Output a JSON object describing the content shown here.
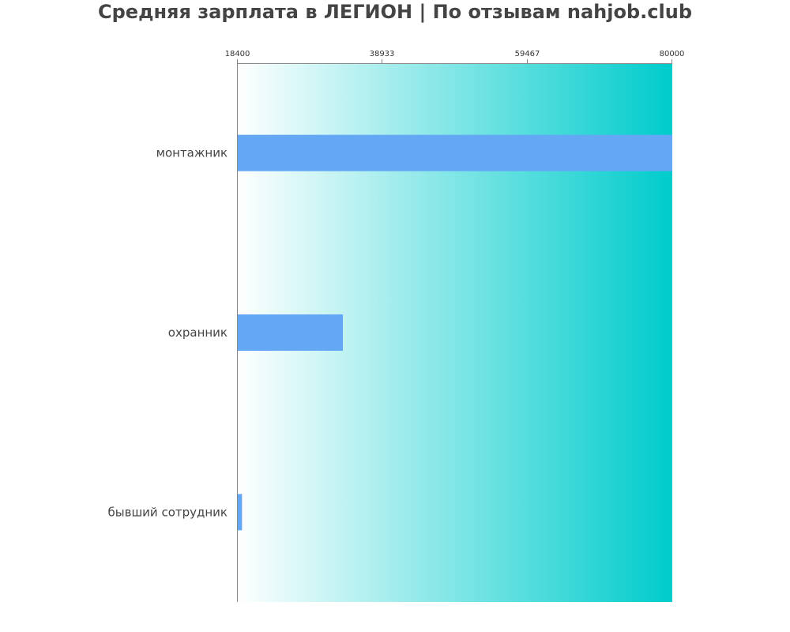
{
  "chart_data": {
    "type": "bar",
    "orientation": "horizontal",
    "title": "Средняя зарплата в ЛЕГИОН | По отзывам nahjob.club",
    "xlabel": "",
    "ylabel": "",
    "categories": [
      "монтажник",
      "охранник",
      "бывший сотрудник"
    ],
    "values": [
      80000,
      33300,
      19000
    ],
    "xlim": [
      18400,
      80000
    ],
    "x_tick_labels": [
      "18400",
      "38933",
      "59467",
      "80000"
    ],
    "x_ticks_position": "top",
    "grid": false,
    "bar_color": "#64a8f5",
    "background_gradient": [
      "#ffffff",
      "#00cccc"
    ]
  }
}
